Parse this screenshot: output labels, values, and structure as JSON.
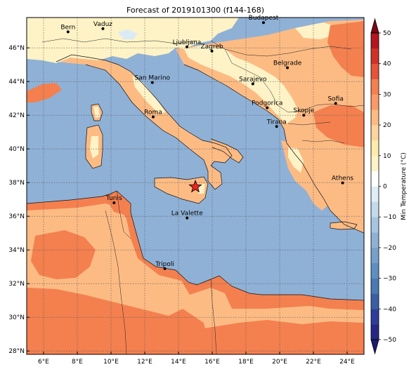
{
  "title": "Forecast of 2019101300 (f144-168)",
  "map": {
    "lon_min": 5,
    "lon_max": 25,
    "lat_min": 27.8,
    "lat_max": 47.8,
    "lon_ticks": [
      6,
      8,
      10,
      12,
      14,
      16,
      18,
      20,
      22,
      24
    ],
    "lat_ticks": [
      28,
      30,
      32,
      34,
      36,
      38,
      40,
      42,
      44,
      46
    ],
    "lon_labels": [
      "6°E",
      "8°E",
      "10°E",
      "12°E",
      "14°E",
      "16°E",
      "18°E",
      "20°E",
      "22°E",
      "24°E"
    ],
    "lat_labels": [
      "28°N",
      "30°N",
      "32°N",
      "34°N",
      "36°N",
      "38°N",
      "40°N",
      "42°N",
      "44°N",
      "46°N"
    ],
    "grid": true,
    "sea_color": "#8fb1d6",
    "colors": {
      "c0_10": "#fdf3c6",
      "c10_20": "#fdbb84",
      "c20_30": "#f4804f",
      "cn10_0": "#dbeaf5"
    }
  },
  "cities": [
    {
      "name": "Bern",
      "lon": 7.45,
      "lat": 46.95
    },
    {
      "name": "Vaduz",
      "lon": 9.52,
      "lat": 47.14
    },
    {
      "name": "Budapest",
      "lon": 19.04,
      "lat": 47.5
    },
    {
      "name": "Ljubljana",
      "lon": 14.5,
      "lat": 46.06
    },
    {
      "name": "Zagreb",
      "lon": 15.98,
      "lat": 45.81
    },
    {
      "name": "Belgrade",
      "lon": 20.46,
      "lat": 44.82
    },
    {
      "name": "San Marino",
      "lon": 12.45,
      "lat": 43.94
    },
    {
      "name": "Sarajevo",
      "lon": 18.41,
      "lat": 43.86
    },
    {
      "name": "Sofia",
      "lon": 23.32,
      "lat": 42.7
    },
    {
      "name": "Podgorica",
      "lon": 19.26,
      "lat": 42.44
    },
    {
      "name": "Skopje",
      "lon": 21.43,
      "lat": 42.0
    },
    {
      "name": "Roma",
      "lon": 12.5,
      "lat": 41.9
    },
    {
      "name": "Tirana",
      "lon": 19.82,
      "lat": 41.33
    },
    {
      "name": "Athens",
      "lon": 23.73,
      "lat": 37.98
    },
    {
      "name": "Tunis",
      "lon": 10.18,
      "lat": 36.8
    },
    {
      "name": "La Valette",
      "lon": 14.51,
      "lat": 35.9
    },
    {
      "name": "Tripoli",
      "lon": 13.19,
      "lat": 32.89
    }
  ],
  "star": {
    "lon": 15.0,
    "lat": 37.75,
    "color": "#e8281e"
  },
  "colorbar": {
    "label": "Min Temperature (°C)",
    "ticks": [
      -50,
      -40,
      -30,
      -20,
      -10,
      0,
      10,
      20,
      30,
      40,
      50
    ],
    "tick_labels": [
      "−50",
      "−40",
      "−30",
      "−20",
      "−10",
      "0",
      "10",
      "20",
      "30",
      "40",
      "50"
    ],
    "levels": [
      -50,
      -45,
      -40,
      -35,
      -30,
      -25,
      -20,
      -15,
      -10,
      -5,
      0,
      5,
      10,
      15,
      20,
      25,
      30,
      35,
      40,
      45,
      50
    ],
    "colors": [
      "#262686",
      "#2f3d9a",
      "#3b5fa7",
      "#4a79b4",
      "#5d8fc1",
      "#779fcb",
      "#8fb1d6",
      "#a7c5e1",
      "#c3d9ec",
      "#dfedf6",
      "#ffffff",
      "#fdf3c6",
      "#feebab",
      "#fdd49e",
      "#fdbb84",
      "#fb9a66",
      "#f4804f",
      "#e4543a",
      "#d03228",
      "#b3171f",
      "#8c0a18"
    ],
    "under_color": "#1c1c6f",
    "over_color": "#7c0a12"
  }
}
